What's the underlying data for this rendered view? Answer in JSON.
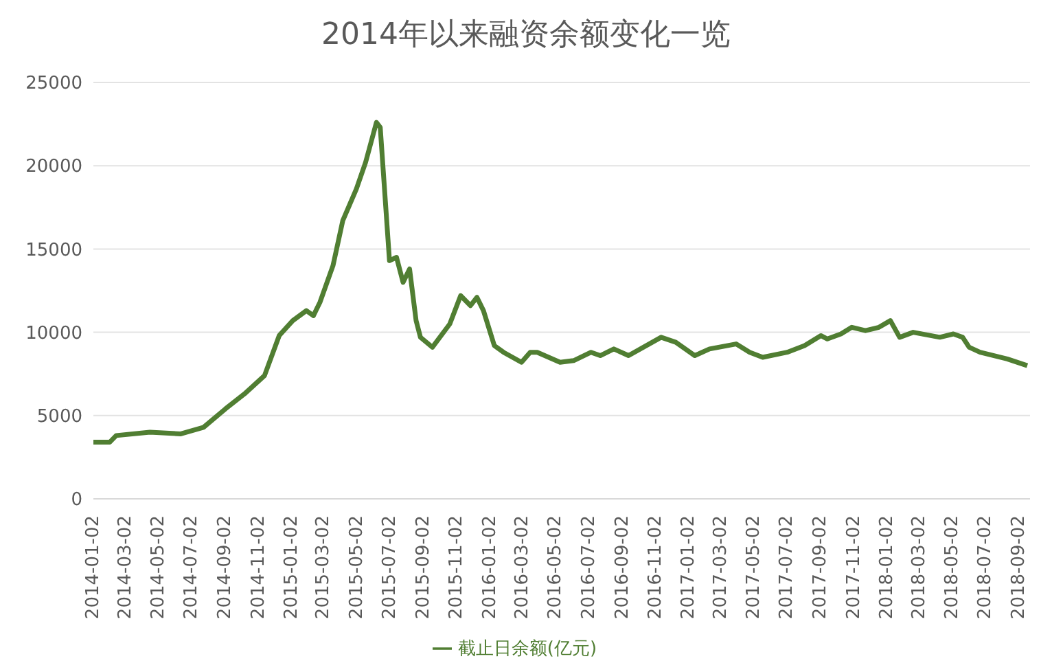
{
  "chart_data": {
    "type": "line",
    "title": "2014年以来融资余额变化一览",
    "x": [
      "2014-01-02",
      "2014-02-01",
      "2014-02-13",
      "2014-04-16",
      "2014-06-12",
      "2014-07-24",
      "2014-09-02",
      "2014-10-07",
      "2014-11-13",
      "2014-12-10",
      "2015-01-04",
      "2015-01-29",
      "2015-02-11",
      "2015-02-23",
      "2015-03-19",
      "2015-04-06",
      "2015-05-01",
      "2015-05-18",
      "2015-06-07",
      "2015-06-14",
      "2015-07-01",
      "2015-07-14",
      "2015-07-26",
      "2015-08-07",
      "2015-08-19",
      "2015-08-27",
      "2015-09-18",
      "2015-10-20",
      "2015-11-09",
      "2015-11-27",
      "2015-12-09",
      "2015-12-21",
      "2016-01-10",
      "2016-01-27",
      "2016-02-29",
      "2016-03-16",
      "2016-03-29",
      "2016-05-10",
      "2016-06-04",
      "2016-07-06",
      "2016-07-23",
      "2016-08-17",
      "2016-09-13",
      "2016-11-12",
      "2016-12-09",
      "2017-01-13",
      "2017-02-09",
      "2017-03-30",
      "2017-04-24",
      "2017-05-18",
      "2017-07-02",
      "2017-08-03",
      "2017-09-02",
      "2017-09-14",
      "2017-10-09",
      "2017-10-29",
      "2017-11-23",
      "2017-12-18",
      "2018-01-08",
      "2018-01-25",
      "2018-02-19",
      "2018-04-09",
      "2018-05-04",
      "2018-05-21",
      "2018-06-02",
      "2018-06-22",
      "2018-08-11",
      "2018-09-17"
    ],
    "series": [
      {
        "name": "截止日余额(亿元)",
        "color": "#507e32",
        "values": [
          3400,
          3400,
          3800,
          4000,
          3900,
          4300,
          5400,
          6300,
          7400,
          9800,
          10700,
          11300,
          11000,
          11800,
          14000,
          16700,
          18600,
          20200,
          22600,
          22300,
          14300,
          14500,
          13000,
          13800,
          10700,
          9700,
          9100,
          10500,
          12200,
          11600,
          12100,
          11300,
          9200,
          8800,
          8200,
          8800,
          8800,
          8200,
          8300,
          8800,
          8600,
          9000,
          8600,
          9700,
          9400,
          8600,
          9000,
          9300,
          8800,
          8500,
          8800,
          9200,
          9800,
          9600,
          9900,
          10300,
          10100,
          10300,
          10700,
          9700,
          10000,
          9700,
          9900,
          9700,
          9100,
          8800,
          8400,
          8000
        ]
      }
    ],
    "xlim": [
      "2014-01-02",
      "2018-09-22"
    ],
    "xticks": [
      "2014-01-02",
      "2014-03-02",
      "2014-05-02",
      "2014-07-02",
      "2014-09-02",
      "2014-11-02",
      "2015-01-02",
      "2015-03-02",
      "2015-05-02",
      "2015-07-02",
      "2015-09-02",
      "2015-11-02",
      "2016-01-02",
      "2016-03-02",
      "2016-05-02",
      "2016-07-02",
      "2016-09-02",
      "2016-11-02",
      "2017-01-02",
      "2017-03-02",
      "2017-05-02",
      "2017-07-02",
      "2017-09-02",
      "2017-11-02",
      "2018-01-02",
      "2018-03-02",
      "2018-05-02",
      "2018-07-02",
      "2018-09-02"
    ],
    "ylim": [
      0,
      25000
    ],
    "yticks": [
      0,
      5000,
      10000,
      15000,
      20000,
      25000
    ],
    "grid": "y",
    "legend": "bottom",
    "marker": "none",
    "line_style": "solid"
  }
}
